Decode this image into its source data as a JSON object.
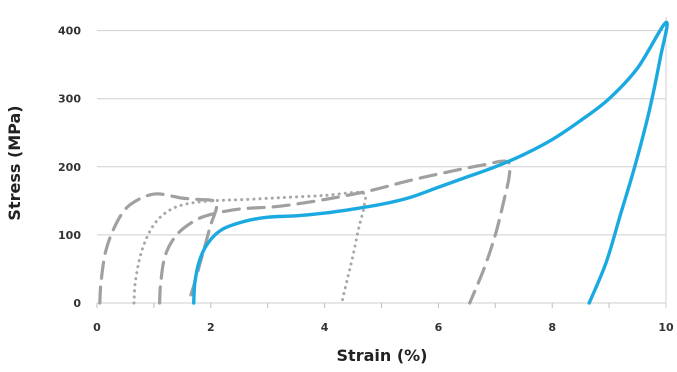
{
  "chart_data": {
    "type": "line",
    "title": "",
    "xlabel": "Strain (%)",
    "ylabel": "Stress (MPa)",
    "xlim": [
      0,
      10
    ],
    "ylim": [
      0,
      420
    ],
    "x_ticks": [
      "0",
      "2",
      "4",
      "6",
      "8",
      "10"
    ],
    "y_ticks": [
      "0",
      "100",
      "200",
      "300",
      "400"
    ],
    "grid": "horizontal",
    "legend": "none",
    "series": [
      {
        "style": "dashed",
        "color": "#a0a0a0",
        "points": [
          [
            0.05,
            0
          ],
          [
            0.07,
            30
          ],
          [
            0.15,
            75
          ],
          [
            0.3,
            110
          ],
          [
            0.5,
            138
          ],
          [
            0.75,
            153
          ],
          [
            1.0,
            160
          ],
          [
            1.2,
            159
          ],
          [
            1.5,
            154
          ],
          [
            1.8,
            152
          ],
          [
            2.05,
            150
          ],
          [
            2.1,
            140
          ],
          [
            2.0,
            115
          ],
          [
            1.9,
            85
          ],
          [
            1.8,
            55
          ],
          [
            1.7,
            25
          ],
          [
            1.6,
            0
          ]
        ]
      },
      {
        "style": "dotted",
        "color": "#a8a8a8",
        "points": [
          [
            0.65,
            0
          ],
          [
            0.68,
            35
          ],
          [
            0.8,
            80
          ],
          [
            1.0,
            115
          ],
          [
            1.25,
            135
          ],
          [
            1.55,
            145
          ],
          [
            2.0,
            150
          ],
          [
            2.6,
            152
          ],
          [
            3.3,
            155
          ],
          [
            4.0,
            158
          ],
          [
            4.65,
            162
          ],
          [
            4.7,
            145
          ],
          [
            4.6,
            110
          ],
          [
            4.5,
            70
          ],
          [
            4.4,
            35
          ],
          [
            4.3,
            0
          ]
        ]
      },
      {
        "style": "dashed",
        "color": "#a0a0a0",
        "points": [
          [
            1.1,
            0
          ],
          [
            1.12,
            30
          ],
          [
            1.2,
            70
          ],
          [
            1.4,
            100
          ],
          [
            1.7,
            120
          ],
          [
            2.0,
            130
          ],
          [
            2.5,
            138
          ],
          [
            3.2,
            142
          ],
          [
            4.0,
            152
          ],
          [
            4.8,
            165
          ],
          [
            5.5,
            180
          ],
          [
            6.2,
            193
          ],
          [
            6.8,
            203
          ],
          [
            7.2,
            208
          ],
          [
            7.25,
            190
          ],
          [
            7.15,
            150
          ],
          [
            7.0,
            100
          ],
          [
            6.8,
            50
          ],
          [
            6.55,
            0
          ]
        ]
      },
      {
        "style": "solid",
        "color": "#1aa9e1",
        "points": [
          [
            1.7,
            0
          ],
          [
            1.72,
            30
          ],
          [
            1.8,
            62
          ],
          [
            1.95,
            88
          ],
          [
            2.2,
            108
          ],
          [
            2.6,
            120
          ],
          [
            3.0,
            126
          ],
          [
            3.5,
            128
          ],
          [
            4.0,
            132
          ],
          [
            4.5,
            138
          ],
          [
            5.0,
            145
          ],
          [
            5.5,
            155
          ],
          [
            6.0,
            170
          ],
          [
            6.5,
            185
          ],
          [
            7.0,
            200
          ],
          [
            7.5,
            218
          ],
          [
            8.0,
            240
          ],
          [
            8.5,
            268
          ],
          [
            9.0,
            300
          ],
          [
            9.5,
            345
          ],
          [
            10.0,
            412
          ],
          [
            9.9,
            360
          ],
          [
            9.7,
            280
          ],
          [
            9.45,
            200
          ],
          [
            9.2,
            130
          ],
          [
            8.95,
            60
          ],
          [
            8.65,
            0
          ]
        ]
      }
    ]
  }
}
